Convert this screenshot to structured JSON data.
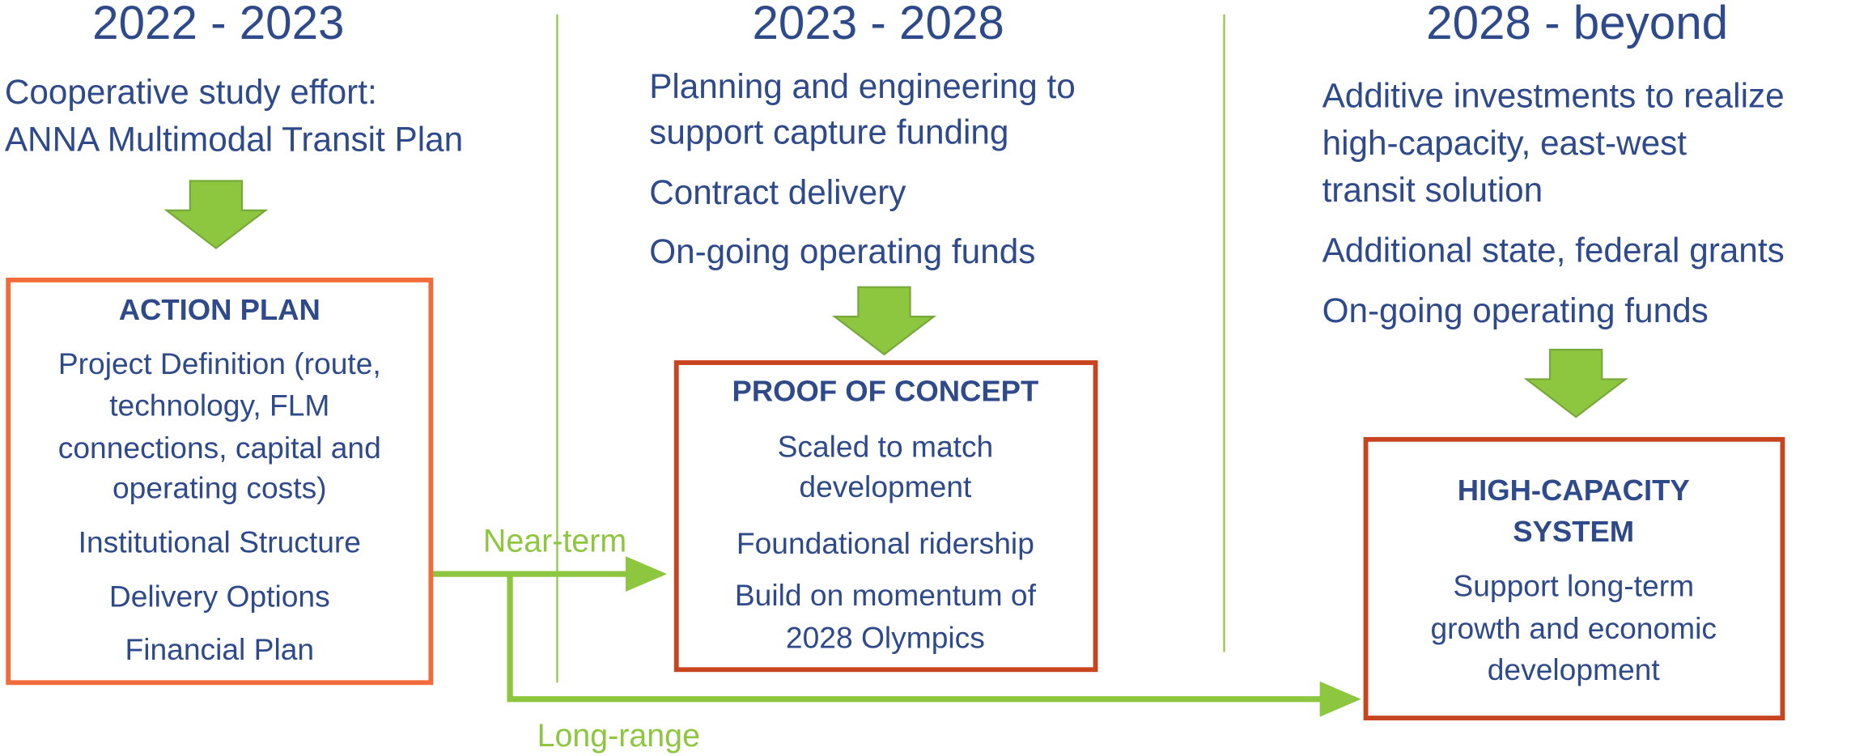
{
  "columns": [
    {
      "heading": "2022 - 2023",
      "intro": [
        "Cooperative study effort:",
        "ANNA Multimodal Transit Plan"
      ],
      "box": {
        "title": [
          "ACTION PLAN"
        ],
        "items": [
          "Project Definition (route,",
          "technology, FLM",
          "connections, capital and",
          "operating costs)",
          "Institutional Structure",
          "Delivery Options",
          "Financial Plan"
        ]
      }
    },
    {
      "heading": "2023 - 2028",
      "intro": [
        "Planning and engineering to",
        "support capture funding",
        "Contract delivery",
        "On-going operating funds"
      ],
      "box": {
        "title": [
          "PROOF OF CONCEPT"
        ],
        "items": [
          "Scaled to match",
          "development",
          "Foundational ridership",
          "Build on momentum of",
          "2028 Olympics"
        ]
      }
    },
    {
      "heading": "2028 - beyond",
      "intro": [
        "Additive investments to realize",
        "high-capacity, east-west",
        "transit solution",
        "Additional state, federal grants",
        "On-going operating funds"
      ],
      "box": {
        "title": [
          "HIGH-CAPACITY",
          "SYSTEM"
        ],
        "items": [
          "Support long-term",
          "growth and economic",
          "development"
        ]
      }
    }
  ],
  "connectors": {
    "near_term": "Near-term",
    "long_range": "Long-range"
  }
}
